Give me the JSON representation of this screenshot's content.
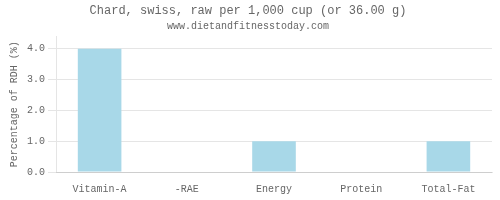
{
  "chart_data": {
    "type": "bar",
    "title": "Chard, swiss, raw per 1,000 cup (or 36.00 g)",
    "subtitle": "www.dietandfitnesstoday.com",
    "categories": [
      "Vitamin-A",
      "-RAE",
      "Energy",
      "Protein",
      "Total-Fat"
    ],
    "values": [
      4.0,
      0.0,
      1.0,
      0.0,
      1.0
    ],
    "color": "#a8d8e8",
    "ylabel": "Percentage of RDH (%)",
    "ylim": [
      0,
      4.4
    ],
    "yticks": [
      {
        "value": 0.0,
        "label": "0.0"
      },
      {
        "value": 1.0,
        "label": "1.0"
      },
      {
        "value": 2.0,
        "label": "2.0"
      },
      {
        "value": 3.0,
        "label": "3.0"
      },
      {
        "value": 4.0,
        "label": "4.0"
      }
    ],
    "grid": true
  }
}
